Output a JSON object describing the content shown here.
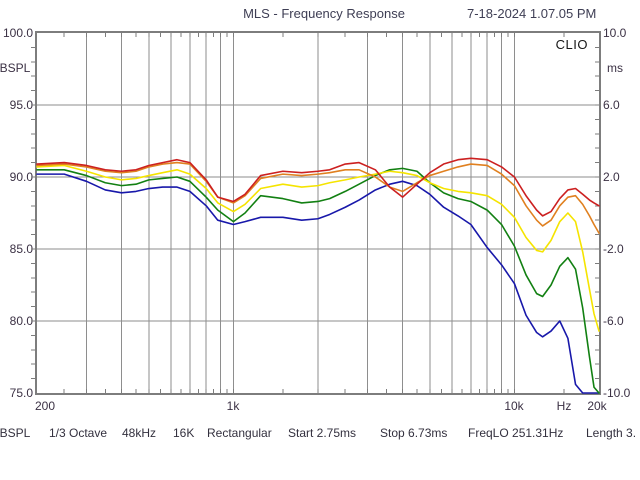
{
  "header": {
    "title": "MLS - Frequency Response",
    "datetime": "7-18-2024 1.07.05 PM"
  },
  "branding": {
    "logo": "CLIO"
  },
  "axes": {
    "left": {
      "unit": "dBSPL",
      "labels": [
        "100.0",
        "95.0",
        "90.0",
        "85.0",
        "80.0",
        "75.0"
      ]
    },
    "right": {
      "unit": "ms",
      "labels": [
        "10.0",
        "6.0",
        "2.0",
        "-2.0",
        "-6.0",
        "-10.0"
      ]
    },
    "bottom": {
      "labels": [
        "200",
        "1k",
        "10k",
        "Hz",
        "20k"
      ]
    }
  },
  "statusbar": {
    "items": [
      "dBSPL",
      "1/3 Octave",
      "48kHz",
      "16K",
      "Rectangular",
      "Start 2.75ms",
      "Stop 6.73ms",
      "FreqLO 251.31Hz",
      "Length 3."
    ]
  },
  "chart_data": {
    "type": "line",
    "title": "MLS - Frequency Response",
    "xlabel": "Hz",
    "ylabel": "dBSPL",
    "y2label": "ms",
    "xscale": "log",
    "xlim": [
      200,
      20000
    ],
    "ylim": [
      75,
      100
    ],
    "y2lim": [
      -10,
      10
    ],
    "grid": true,
    "legend": "none",
    "grid_color": "#8e8e8e",
    "border_color": "#7d7d7d",
    "x_gridlines": [
      300,
      400,
      500,
      600,
      700,
      800,
      900,
      1000,
      2000,
      3000,
      4000,
      5000,
      6000,
      7000,
      8000,
      9000,
      10000
    ],
    "y_gridlines": [
      80,
      85,
      90,
      95
    ],
    "x_minor_ticks": [
      250,
      350,
      450,
      550,
      650,
      750,
      850,
      950,
      1500,
      2500,
      3500,
      4500,
      5500,
      6500,
      7500,
      8500,
      9500,
      15000
    ],
    "y_minor_tick_step_db": 1,
    "x": [
      200,
      250,
      300,
      350,
      400,
      450,
      500,
      560,
      630,
      700,
      800,
      880,
      1000,
      1100,
      1250,
      1500,
      1750,
      2000,
      2200,
      2500,
      2800,
      3200,
      3600,
      4000,
      4500,
      5000,
      5600,
      6300,
      7000,
      8000,
      9000,
      10000,
      11000,
      12000,
      12600,
      13500,
      14500,
      15500,
      16500,
      17500,
      18500,
      19200,
      20000
    ],
    "series": [
      {
        "name": "red",
        "color": "#cc2020",
        "values": [
          90.9,
          91.0,
          90.8,
          90.5,
          90.4,
          90.5,
          90.8,
          91.0,
          91.2,
          91.0,
          89.8,
          88.6,
          88.3,
          88.8,
          90.1,
          90.4,
          90.3,
          90.4,
          90.5,
          90.9,
          91.0,
          90.5,
          89.3,
          88.6,
          89.5,
          90.3,
          90.9,
          91.2,
          91.3,
          91.2,
          90.7,
          90.0,
          88.7,
          87.7,
          87.3,
          87.6,
          88.5,
          89.1,
          89.2,
          88.8,
          88.4,
          88.2,
          88.0
        ]
      },
      {
        "name": "orange",
        "color": "#e08020",
        "values": [
          90.8,
          90.9,
          90.7,
          90.4,
          90.3,
          90.4,
          90.7,
          90.9,
          91.0,
          90.9,
          89.7,
          88.6,
          88.2,
          88.7,
          89.9,
          90.2,
          90.1,
          90.2,
          90.3,
          90.5,
          90.5,
          90.0,
          89.3,
          89.0,
          89.6,
          90.1,
          90.4,
          90.7,
          90.9,
          90.8,
          90.2,
          89.4,
          88.0,
          87.0,
          86.6,
          87.0,
          88.0,
          88.6,
          88.7,
          88.1,
          87.3,
          86.7,
          86.1
        ]
      },
      {
        "name": "yellow",
        "color": "#f5e400",
        "values": [
          90.7,
          90.8,
          90.4,
          90.0,
          89.8,
          89.9,
          90.1,
          90.3,
          90.5,
          90.2,
          89.2,
          88.2,
          87.6,
          88.1,
          89.2,
          89.5,
          89.3,
          89.4,
          89.6,
          89.8,
          90.0,
          90.2,
          90.4,
          90.3,
          90.1,
          89.6,
          89.2,
          89.0,
          88.9,
          88.7,
          88.1,
          87.2,
          85.8,
          84.9,
          84.8,
          85.6,
          86.9,
          87.5,
          86.9,
          84.8,
          82.2,
          80.5,
          79.3
        ]
      },
      {
        "name": "green",
        "color": "#128012",
        "values": [
          90.5,
          90.5,
          90.1,
          89.6,
          89.4,
          89.5,
          89.8,
          89.9,
          90.0,
          89.7,
          88.6,
          87.7,
          86.9,
          87.5,
          88.7,
          88.5,
          88.2,
          88.3,
          88.5,
          89.0,
          89.5,
          90.1,
          90.5,
          90.6,
          90.4,
          89.6,
          88.9,
          88.5,
          88.3,
          87.7,
          86.7,
          85.2,
          83.2,
          81.9,
          81.7,
          82.5,
          83.8,
          84.4,
          83.6,
          80.9,
          77.5,
          75.4,
          75.0
        ]
      },
      {
        "name": "blue",
        "color": "#1818aa",
        "values": [
          90.2,
          90.2,
          89.7,
          89.1,
          88.9,
          89.0,
          89.2,
          89.3,
          89.3,
          89.0,
          88.0,
          87.0,
          86.7,
          86.9,
          87.2,
          87.2,
          87.0,
          87.1,
          87.4,
          87.9,
          88.4,
          89.1,
          89.5,
          89.7,
          89.4,
          88.8,
          87.9,
          87.3,
          86.7,
          85.1,
          83.9,
          82.6,
          80.4,
          79.2,
          78.9,
          79.3,
          80.0,
          78.8,
          75.6,
          75.0,
          75.0,
          75.0,
          75.0
        ]
      }
    ]
  }
}
